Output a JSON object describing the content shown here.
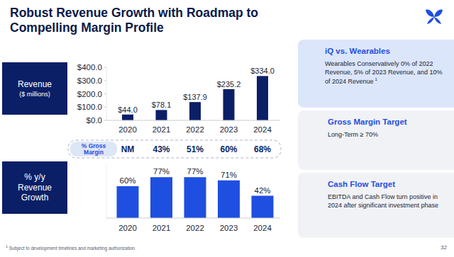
{
  "header": {
    "title": "Robust Revenue Growth with Roadmap to Compelling Margin Profile"
  },
  "chart_data": [
    {
      "type": "bar",
      "title": "Revenue",
      "subtitle": "($ millions)",
      "categories": [
        "2020",
        "2021",
        "2022",
        "2023",
        "2024"
      ],
      "values": [
        44.0,
        78.1,
        137.9,
        235.2,
        334.0
      ],
      "value_labels": [
        "$44.0",
        "$78.1",
        "$137.9",
        "$235.2",
        "$334.0"
      ],
      "color": "#0a1f66",
      "ylim": [
        0,
        400
      ],
      "yticks": [
        {
          "value": 0,
          "label": "$0.0"
        },
        {
          "value": 100,
          "label": "$100.0"
        },
        {
          "value": 200,
          "label": "$200.0"
        },
        {
          "value": 300,
          "label": "$300.0"
        },
        {
          "value": 400,
          "label": "$400.0"
        }
      ],
      "grid": false,
      "data_labels": true
    },
    {
      "type": "bar",
      "title": "% y/y Revenue Growth",
      "categories": [
        "2020",
        "2021",
        "2022",
        "2023",
        "2024"
      ],
      "values": [
        60,
        77,
        77,
        71,
        42
      ],
      "value_labels": [
        "60%",
        "77%",
        "77%",
        "71%",
        "42%"
      ],
      "color": "#1f4fe0",
      "ylim": [
        0,
        100
      ],
      "grid": false,
      "data_labels": true,
      "tick_labels": "x"
    }
  ],
  "gross_margin": {
    "label": "% Gross Margin",
    "values": [
      "NM",
      "43%",
      "51%",
      "60%",
      "68%"
    ]
  },
  "panels": [
    {
      "title": "iQ vs. Wearables",
      "text": "Wearables Conservatively 0% of 2022 Revenue, 5% of 2023 Revenue, and 10% of 2024 Revenue",
      "footnote_mark": "1"
    },
    {
      "title": "Gross Margin Target",
      "text": "Long-Term ≥ 70%"
    },
    {
      "title": "Cash Flow Target",
      "text": "EBITDA and Cash Flow turn positive in 2024 after significant investment phase"
    }
  ],
  "footnote": {
    "mark": "1",
    "text": "Subject to development timelines and marketing authorization"
  },
  "page_number": "32"
}
